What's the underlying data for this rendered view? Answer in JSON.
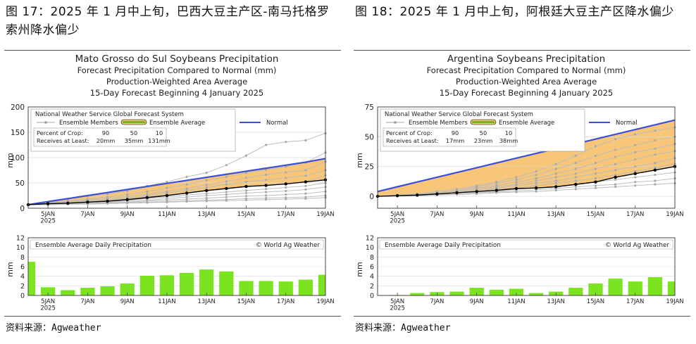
{
  "panels": [
    {
      "figure_title": "图 17：2025 年 1 月中上旬，巴西大豆主产区-南马托格罗索州降水偏少",
      "source": "资料来源：Agweather",
      "chart_data": [
        {
          "type": "line",
          "title_lines": [
            "Mato Grosso do Sul Soybeans Precipitation",
            "Forecast Precipitation Compared to Normal (mm)",
            "Production-Weighted Area Average",
            "15-Day Forecast Beginning 4 January 2025"
          ],
          "ylabel": "mm",
          "ylim": [
            0,
            200
          ],
          "yticks": [
            0,
            50,
            100,
            150,
            200
          ],
          "xticks": [
            "5JAN\n2025",
            "7JAN",
            "9JAN",
            "11JAN",
            "13JAN",
            "15JAN",
            "17JAN",
            "19JAN"
          ],
          "x_days": [
            4,
            5,
            6,
            7,
            8,
            9,
            10,
            11,
            12,
            13,
            14,
            15,
            16,
            17,
            18,
            19
          ],
          "legend_title": "National Weather Service Global Forecast System",
          "legend_entries": [
            "Ensemble Members",
            "Ensemble Average",
            "Normal"
          ],
          "crop_table": {
            "row1_label": "Percent of Crop:",
            "row2_label": "Receives at Least:",
            "percents": [
              "90",
              "50",
              "10"
            ],
            "amounts": [
              "20mm",
              "35mm",
              "131mm"
            ]
          },
          "series": [
            {
              "name": "Normal",
              "values": [
                7,
                13,
                19,
                25,
                31,
                37,
                43,
                49,
                55,
                61,
                67,
                73,
                79,
                85,
                91,
                98
              ]
            },
            {
              "name": "Ensemble Average",
              "values": [
                7,
                9,
                10,
                12,
                14,
                17,
                21,
                25,
                30,
                35,
                39,
                43,
                45,
                48,
                52,
                56
              ]
            },
            {
              "name": "Ensemble Members",
              "values": [
                7,
                12,
                18,
                24,
                28,
                34,
                44,
                52,
                62,
                70,
                85,
                104,
                125,
                131,
                134,
                148
              ]
            },
            {
              "name": "Ensemble Members",
              "values": [
                7,
                11,
                14,
                18,
                22,
                27,
                33,
                40,
                47,
                55,
                62,
                70,
                76,
                82,
                90,
                110
              ]
            },
            {
              "name": "Ensemble Members",
              "values": [
                7,
                10,
                13,
                16,
                19,
                23,
                28,
                33,
                39,
                46,
                53,
                60,
                66,
                71,
                75,
                92
              ]
            },
            {
              "name": "Ensemble Members",
              "values": [
                7,
                9,
                11,
                14,
                17,
                20,
                25,
                30,
                35,
                41,
                47,
                52,
                56,
                60,
                64,
                75
              ]
            },
            {
              "name": "Ensemble Members",
              "values": [
                7,
                9,
                11,
                13,
                15,
                18,
                22,
                26,
                30,
                34,
                38,
                42,
                45,
                48,
                52,
                65
              ]
            },
            {
              "name": "Ensemble Members",
              "values": [
                7,
                8,
                10,
                12,
                13,
                16,
                19,
                22,
                26,
                29,
                32,
                35,
                38,
                41,
                44,
                50
              ]
            },
            {
              "name": "Ensemble Members",
              "values": [
                7,
                8,
                9,
                10,
                12,
                14,
                16,
                19,
                22,
                25,
                27,
                30,
                32,
                34,
                37,
                42
              ]
            },
            {
              "name": "Ensemble Members",
              "values": [
                7,
                8,
                9,
                10,
                11,
                12,
                14,
                16,
                18,
                20,
                22,
                24,
                25,
                27,
                29,
                33
              ]
            },
            {
              "name": "Ensemble Members",
              "values": [
                7,
                7,
                8,
                9,
                10,
                11,
                12,
                13,
                15,
                16,
                17,
                19,
                20,
                21,
                22,
                25
              ]
            },
            {
              "name": "Ensemble Members",
              "values": [
                7,
                7,
                8,
                8,
                9,
                10,
                11,
                12,
                13,
                14,
                15,
                16,
                17,
                18,
                19,
                21
              ]
            }
          ]
        },
        {
          "type": "bar",
          "title": "Ensemble Average Daily Precipitation",
          "credit": "© World Ag Weather",
          "ylabel": "mm",
          "ylim": [
            0,
            12
          ],
          "yticks": [
            0,
            2,
            4,
            6,
            8,
            10,
            12
          ],
          "xticks": [
            "5JAN\n2025",
            "7JAN",
            "9JAN",
            "11JAN",
            "13JAN",
            "15JAN",
            "17JAN",
            "19JAN"
          ],
          "x_days": [
            4,
            5,
            6,
            7,
            8,
            9,
            10,
            11,
            12,
            13,
            14,
            15,
            16,
            17,
            18,
            19
          ],
          "values": [
            7.0,
            1.7,
            1.1,
            1.6,
            1.9,
            2.5,
            4.1,
            4.2,
            4.7,
            5.4,
            5.0,
            3.0,
            3.0,
            2.9,
            3.3,
            4.3
          ]
        }
      ]
    },
    {
      "figure_title": "图 18：2025 年 1 月中上旬，阿根廷大豆主产区降水偏少",
      "source": "资料来源：Agweather",
      "chart_data": [
        {
          "type": "line",
          "title_lines": [
            "Argentina Soybeans Precipitation",
            "Forecast Precipitation Compared to Normal (mm)",
            "Production-Weighted Area Average",
            "15-Day Forecast Beginning 4 January 2025"
          ],
          "ylabel": "mm",
          "ylim": [
            -10,
            75
          ],
          "yticks": [
            0,
            25,
            50,
            75
          ],
          "xticks": [
            "5JAN\n2025",
            "7JAN",
            "9JAN",
            "11JAN",
            "13JAN",
            "15JAN",
            "17JAN",
            "19JAN"
          ],
          "x_days": [
            4,
            5,
            6,
            7,
            8,
            9,
            10,
            11,
            12,
            13,
            14,
            15,
            16,
            17,
            18,
            19
          ],
          "legend_title": "National Weather Service Global Forecast System",
          "legend_entries": [
            "Ensemble Members",
            "Ensemble Average",
            "Normal"
          ],
          "crop_table": {
            "row1_label": "Percent of Crop:",
            "row2_label": "Receives at Least:",
            "percents": [
              "90",
              "50",
              "10"
            ],
            "amounts": [
              "17mm",
              "23mm",
              "38mm"
            ]
          },
          "series": [
            {
              "name": "Normal",
              "values": [
                4,
                8,
                12,
                16,
                20,
                24,
                28,
                32,
                36,
                40,
                44,
                48,
                52,
                56,
                60,
                64
              ]
            },
            {
              "name": "Ensemble Average",
              "values": [
                0,
                0.5,
                1,
                2,
                3,
                4,
                5,
                6.5,
                7,
                8,
                10,
                12,
                16,
                19,
                22,
                25
              ]
            },
            {
              "name": "Ensemble Members",
              "values": [
                0,
                1,
                2,
                4,
                6,
                9,
                12,
                16,
                21,
                27,
                34,
                42,
                48,
                52,
                55,
                58
              ]
            },
            {
              "name": "Ensemble Members",
              "values": [
                0,
                1,
                2,
                3,
                5,
                8,
                11,
                14,
                18,
                23,
                28,
                34,
                39,
                43,
                47,
                50
              ]
            },
            {
              "name": "Ensemble Members",
              "values": [
                0,
                1,
                2,
                3,
                5,
                7,
                9,
                12,
                15,
                19,
                23,
                28,
                33,
                37,
                40,
                44
              ]
            },
            {
              "name": "Ensemble Members",
              "values": [
                0,
                1,
                1.5,
                3,
                4,
                6,
                8,
                10,
                13,
                16,
                19,
                23,
                27,
                31,
                35,
                38
              ]
            },
            {
              "name": "Ensemble Members",
              "values": [
                0,
                0.5,
                1,
                2,
                3,
                5,
                7,
                9,
                11,
                13,
                16,
                19,
                22,
                25,
                28,
                32
              ]
            },
            {
              "name": "Ensemble Members",
              "values": [
                0,
                0.5,
                1,
                2,
                3,
                4,
                6,
                7,
                9,
                11,
                13,
                15,
                18,
                21,
                24,
                27
              ]
            },
            {
              "name": "Ensemble Members",
              "values": [
                0,
                0.5,
                1,
                1.5,
                2,
                3,
                4,
                6,
                7,
                8,
                10,
                12,
                14,
                16,
                18,
                20
              ]
            },
            {
              "name": "Ensemble Members",
              "values": [
                0,
                0.3,
                0.8,
                1.2,
                2,
                3,
                3.5,
                4.5,
                5.5,
                6.5,
                8,
                9,
                10,
                12,
                13,
                15
              ]
            },
            {
              "name": "Ensemble Members",
              "values": [
                0,
                0.2,
                0.5,
                1,
                1.5,
                2,
                3,
                3.5,
                4,
                5,
                6,
                7,
                8,
                9,
                10,
                11
              ]
            }
          ]
        },
        {
          "type": "bar",
          "title": "Ensemble Average Daily Precipitation",
          "credit": "© World Ag Weather",
          "ylabel": "mm",
          "ylim": [
            0,
            12
          ],
          "yticks": [
            0,
            2,
            4,
            6,
            8,
            10,
            12
          ],
          "xticks": [
            "5JAN\n2025",
            "7JAN",
            "9JAN",
            "11JAN",
            "13JAN",
            "15JAN",
            "17JAN",
            "19JAN"
          ],
          "x_days": [
            4,
            5,
            6,
            7,
            8,
            9,
            10,
            11,
            12,
            13,
            14,
            15,
            16,
            17,
            18,
            19
          ],
          "values": [
            0.0,
            0.1,
            0.5,
            0.7,
            0.8,
            1.6,
            1.2,
            1.4,
            0.5,
            0.8,
            1.6,
            2.5,
            3.5,
            2.9,
            3.8,
            2.9
          ]
        }
      ]
    }
  ],
  "colors": {
    "normal_line": "#3b4fd8",
    "fill": "#f7c06a",
    "average_line": "#000000",
    "member_line": "#bdbdbd",
    "bars": "#7be31f",
    "axis": "#444444"
  }
}
